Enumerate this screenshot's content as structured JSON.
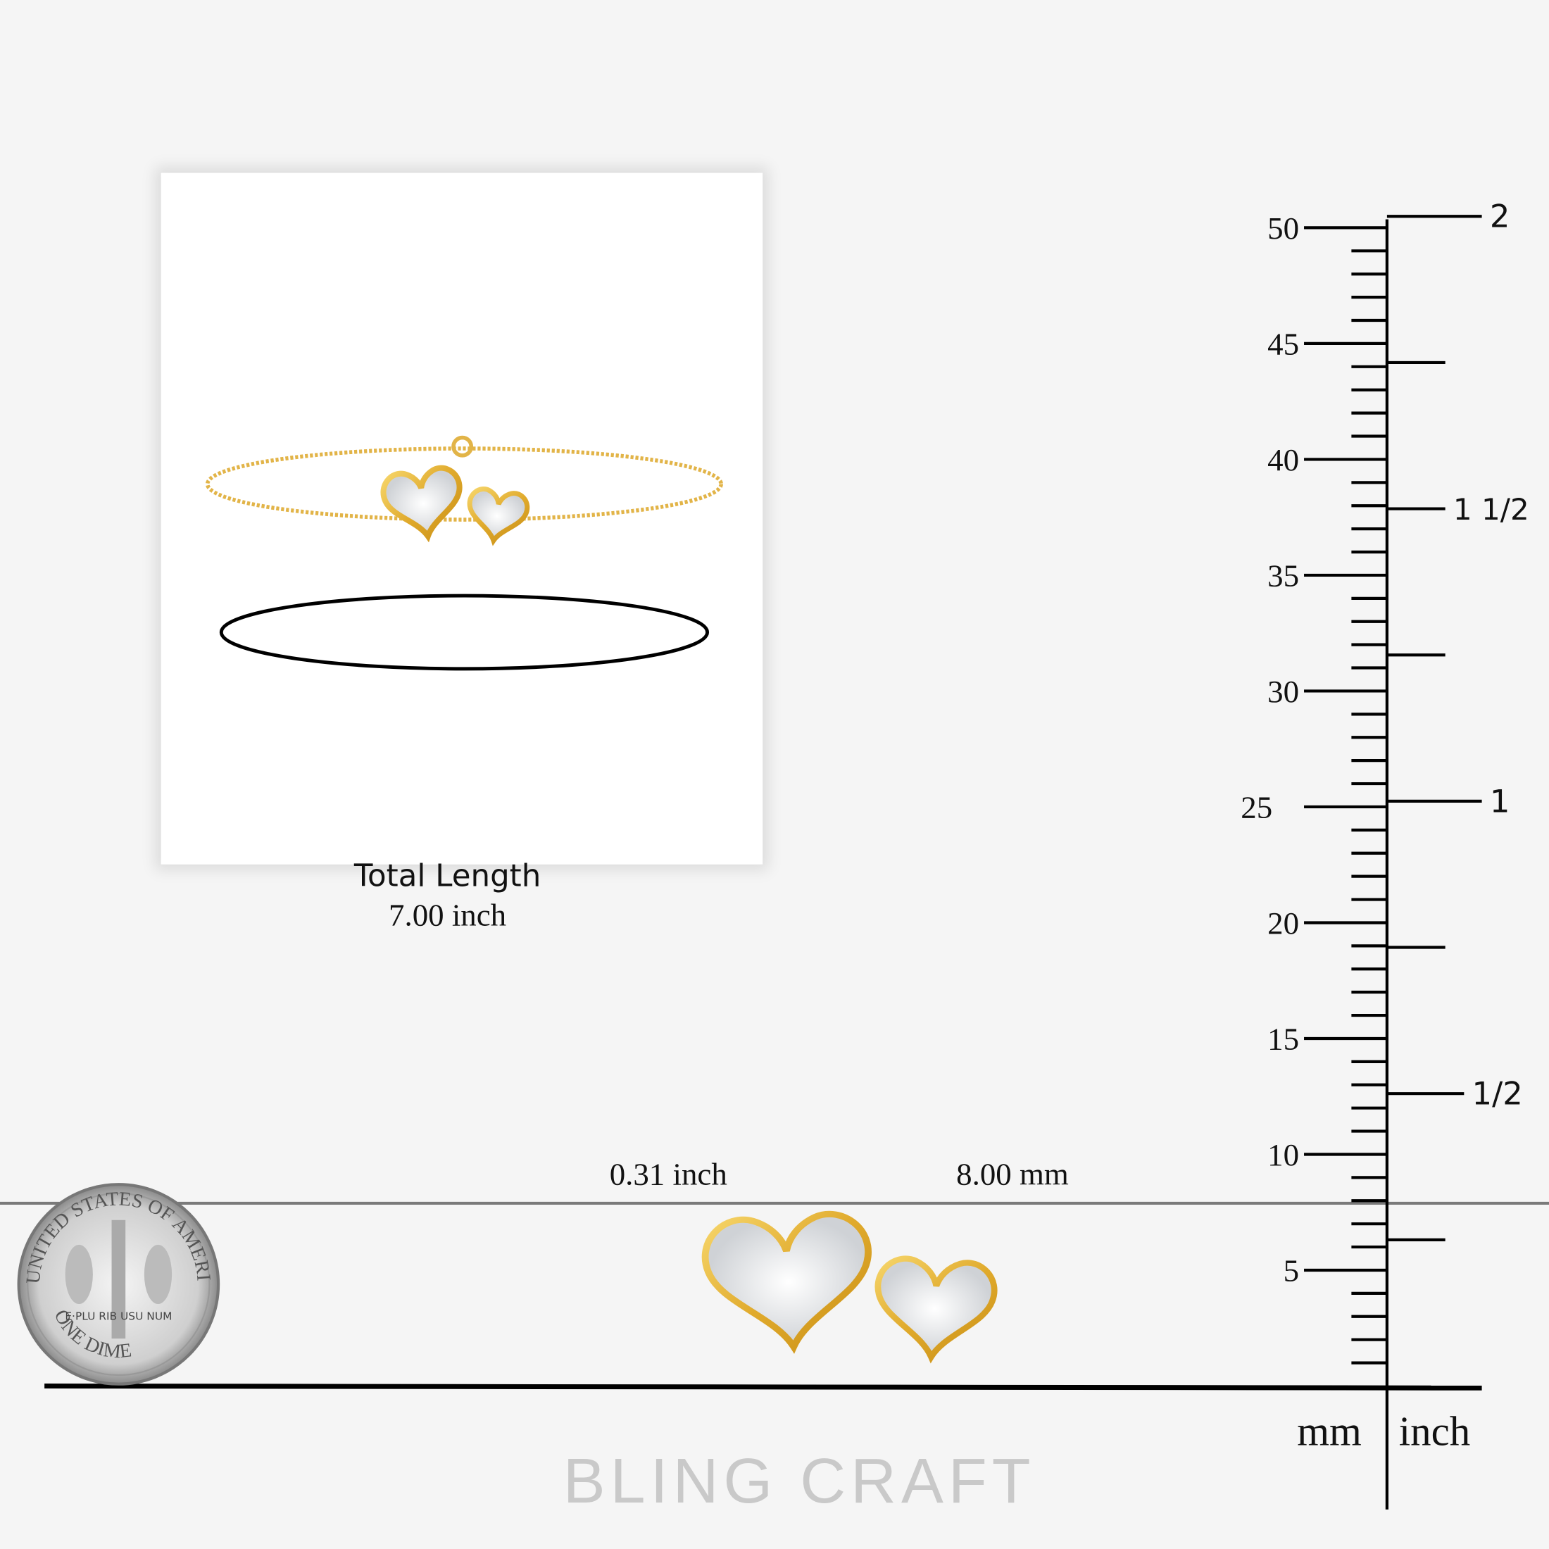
{
  "product_card": {
    "total_length_label": "Total Length",
    "total_length_value": "7.00 inch"
  },
  "dimensions": {
    "inch": "0.31 inch",
    "mm": "8.00 mm"
  },
  "ruler": {
    "mm_labels": [
      "5",
      "10",
      "15",
      "20",
      "25",
      "30",
      "35",
      "40",
      "45",
      "50"
    ],
    "inch_labels": [
      {
        "value": 0.5,
        "text": "1/2"
      },
      {
        "value": 1,
        "text": "1"
      },
      {
        "value": 1.5,
        "text": "1 1/2"
      },
      {
        "value": 2,
        "text": "2"
      }
    ],
    "unit_mm": "mm",
    "unit_inch": "inch"
  },
  "coin": {
    "text_top": "UNITED STATES OF AMERICA",
    "text_bottom": "ONE DIME",
    "motto": "E·PLU RIB USU NUM"
  },
  "brand": "BLING CRAFT",
  "colors": {
    "gold": "#e3b43a",
    "background": "#f5f5f5",
    "brand_gray": "#c9c9c9"
  }
}
